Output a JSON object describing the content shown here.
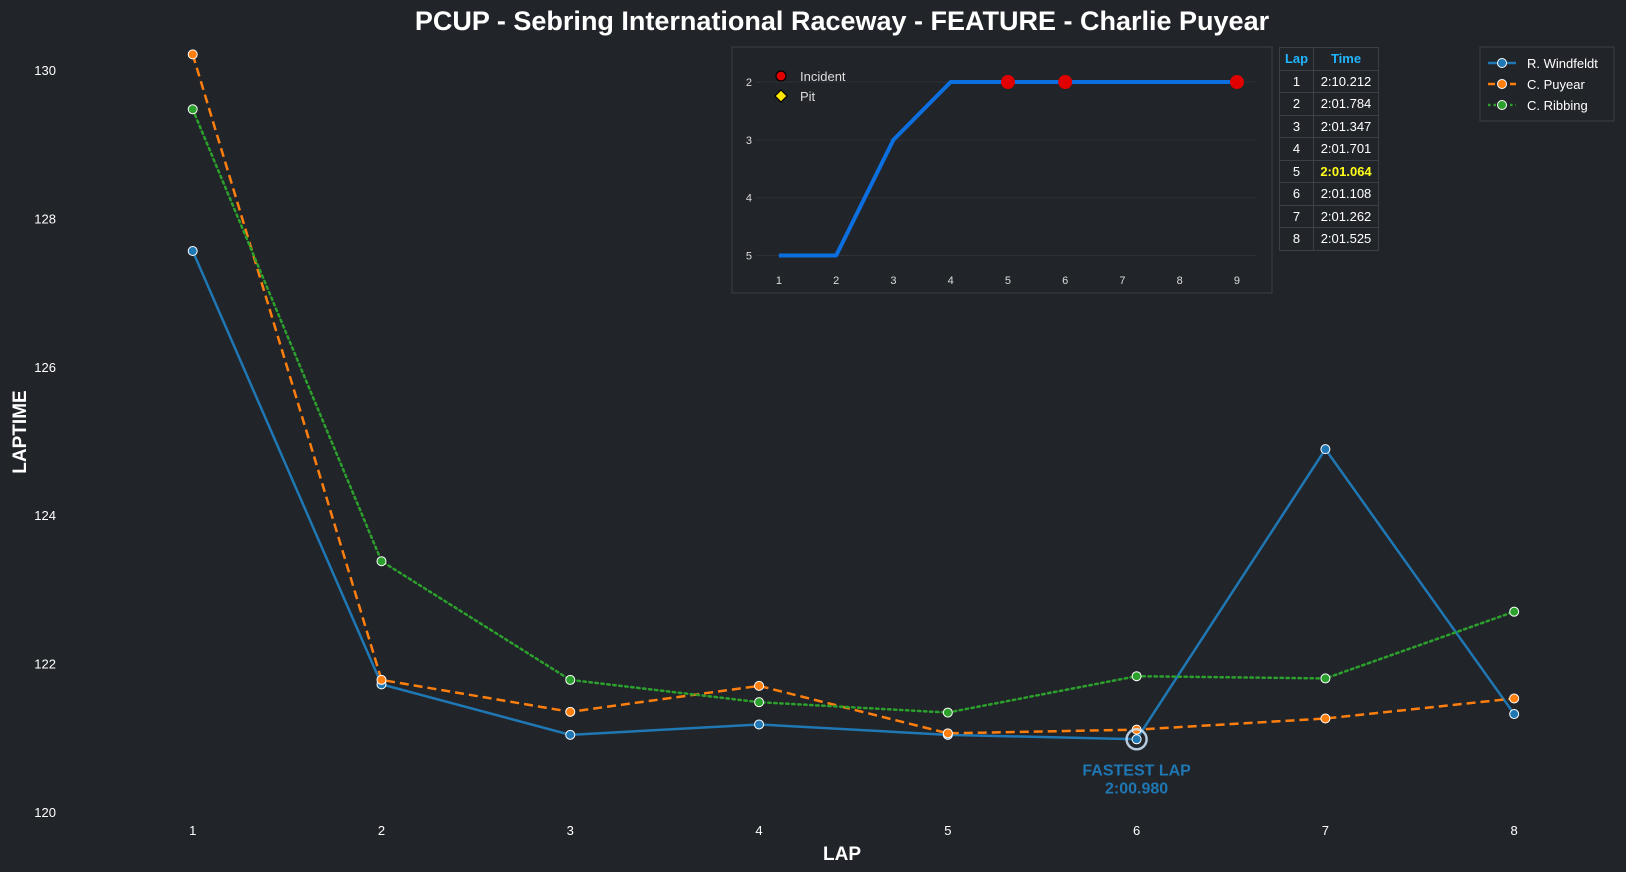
{
  "chart_data": [
    {
      "type": "line",
      "title": "PCUP - Sebring International Raceway - FEATURE - Charlie Puyear",
      "xlabel": "LAP",
      "ylabel": "LAPTIME",
      "x": [
        1,
        2,
        3,
        4,
        5,
        6,
        7,
        8
      ],
      "xlim": [
        0.35,
        8.55
      ],
      "ylim": [
        120,
        130.35
      ],
      "yticks": [
        120,
        122,
        124,
        126,
        128,
        130
      ],
      "grid": false,
      "legend_position": "top-right",
      "series": [
        {
          "name": "R. Windfeldt",
          "color": "#1f77b4",
          "style": "solid",
          "values": [
            127.56,
            121.72,
            121.04,
            121.18,
            121.04,
            120.98,
            124.89,
            121.32
          ]
        },
        {
          "name": "C. Puyear",
          "color": "#ff7f0e",
          "style": "dashed",
          "values": [
            130.21,
            121.78,
            121.35,
            121.7,
            121.06,
            121.11,
            121.26,
            121.53
          ]
        },
        {
          "name": "C. Ribbing",
          "color": "#2ca02c",
          "style": "dotted",
          "values": [
            129.47,
            123.38,
            121.78,
            121.48,
            121.34,
            121.83,
            121.8,
            122.7
          ]
        }
      ],
      "annotation": {
        "series": "R. Windfeldt",
        "x": 6,
        "y": 120.98,
        "label": "FASTEST LAP",
        "value": "2:00.980"
      }
    },
    {
      "type": "line",
      "title": "",
      "x": [
        1,
        2,
        3,
        4,
        5,
        6,
        7,
        8,
        9
      ],
      "values": [
        5,
        5,
        3,
        2,
        2,
        2,
        2,
        2,
        2
      ],
      "ylim": [
        5.25,
        1.55
      ],
      "y_inverted": true,
      "yticks": [
        2,
        3,
        4,
        5
      ],
      "color": "#0c6fe0",
      "incident_laps": [
        5,
        6,
        9
      ],
      "legend": [
        {
          "label": "Incident",
          "color": "#e00000"
        },
        {
          "label": "Pit",
          "color": "#ffe600"
        }
      ]
    }
  ],
  "lap_table": {
    "headers": [
      "Lap",
      "Time"
    ],
    "rows": [
      {
        "lap": "1",
        "time": "2:10.212"
      },
      {
        "lap": "2",
        "time": "2:01.784"
      },
      {
        "lap": "3",
        "time": "2:01.347"
      },
      {
        "lap": "4",
        "time": "2:01.701"
      },
      {
        "lap": "5",
        "time": "2:01.064",
        "best": true
      },
      {
        "lap": "6",
        "time": "2:01.108"
      },
      {
        "lap": "7",
        "time": "2:01.262"
      },
      {
        "lap": "8",
        "time": "2:01.525"
      }
    ]
  }
}
